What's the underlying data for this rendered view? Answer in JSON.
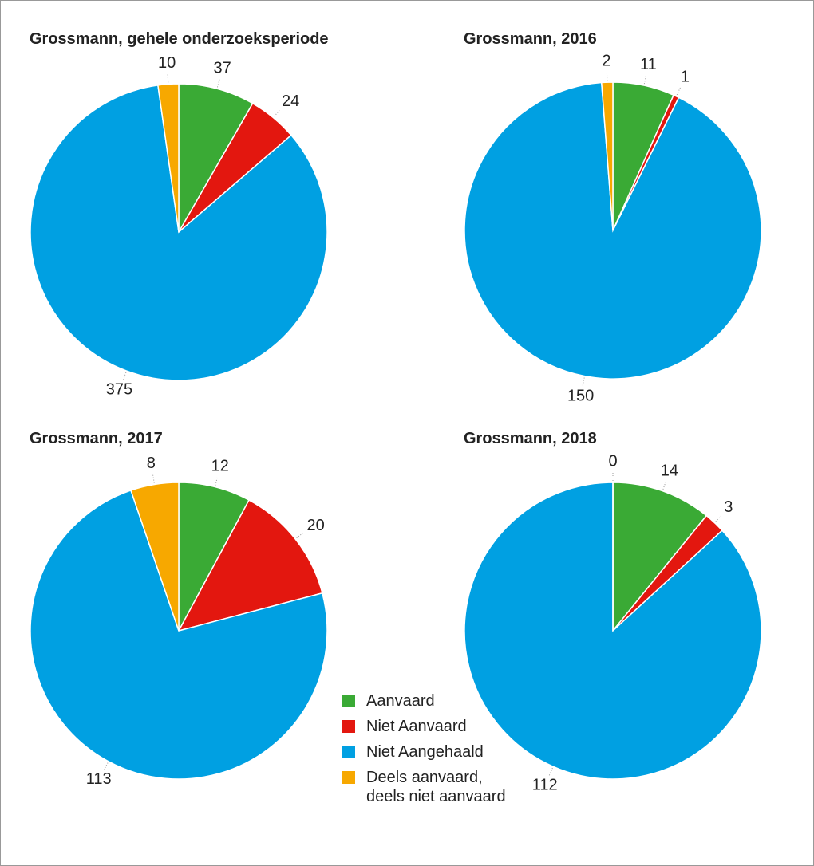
{
  "chart_data": [
    {
      "type": "pie",
      "title": "Grossmann, gehele onderzoeksperiode",
      "categories": [
        "Aanvaard",
        "Niet Aanvaard",
        "Niet Aangehaald",
        "Deels aanvaard, deels niet aanvaard"
      ],
      "values": [
        37,
        24,
        375,
        10
      ],
      "colors": [
        "#3aaa35",
        "#e3170f",
        "#00a0e2",
        "#f7a800"
      ]
    },
    {
      "type": "pie",
      "title": "Grossmann, 2016",
      "categories": [
        "Aanvaard",
        "Niet Aanvaard",
        "Niet Aangehaald",
        "Deels aanvaard, deels niet aanvaard"
      ],
      "values": [
        11,
        1,
        150,
        2
      ],
      "colors": [
        "#3aaa35",
        "#e3170f",
        "#00a0e2",
        "#f7a800"
      ]
    },
    {
      "type": "pie",
      "title": "Grossmann, 2017",
      "categories": [
        "Aanvaard",
        "Niet Aanvaard",
        "Niet Aangehaald",
        "Deels aanvaard, deels niet aanvaard"
      ],
      "values": [
        12,
        20,
        113,
        8
      ],
      "colors": [
        "#3aaa35",
        "#e3170f",
        "#00a0e2",
        "#f7a800"
      ]
    },
    {
      "type": "pie",
      "title": "Grossmann, 2018",
      "categories": [
        "Aanvaard",
        "Niet Aanvaard",
        "Niet Aangehaald",
        "Deels aanvaard, deels niet aanvaard"
      ],
      "values": [
        14,
        3,
        112,
        0
      ],
      "colors": [
        "#3aaa35",
        "#e3170f",
        "#00a0e2",
        "#f7a800"
      ]
    }
  ]
}
